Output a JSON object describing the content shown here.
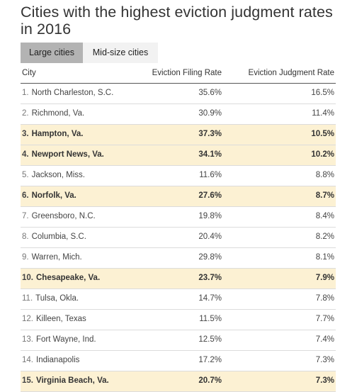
{
  "title": "Cities with the highest eviction judgment rates in 2016",
  "tabs": [
    {
      "label": "Large cities",
      "active": true
    },
    {
      "label": "Mid-size cities",
      "active": false
    }
  ],
  "columns": [
    "City",
    "Eviction Filing Rate",
    "Eviction Judgment Rate"
  ],
  "highlight_color": "#fcf1d3",
  "rows": [
    {
      "num": "1.",
      "city": "North Charleston, S.C.",
      "filing": "35.6%",
      "judgment": "16.5%",
      "highlight": false
    },
    {
      "num": "2.",
      "city": "Richmond, Va.",
      "filing": "30.9%",
      "judgment": "11.4%",
      "highlight": false
    },
    {
      "num": "3.",
      "city": "Hampton, Va.",
      "filing": "37.3%",
      "judgment": "10.5%",
      "highlight": true
    },
    {
      "num": "4.",
      "city": "Newport News, Va.",
      "filing": "34.1%",
      "judgment": "10.2%",
      "highlight": true
    },
    {
      "num": "5.",
      "city": "Jackson, Miss.",
      "filing": "11.6%",
      "judgment": "8.8%",
      "highlight": false
    },
    {
      "num": "6.",
      "city": "Norfolk, Va.",
      "filing": "27.6%",
      "judgment": "8.7%",
      "highlight": true
    },
    {
      "num": "7.",
      "city": "Greensboro, N.C.",
      "filing": "19.8%",
      "judgment": "8.4%",
      "highlight": false
    },
    {
      "num": "8.",
      "city": "Columbia, S.C.",
      "filing": "20.4%",
      "judgment": "8.2%",
      "highlight": false
    },
    {
      "num": "9.",
      "city": "Warren, Mich.",
      "filing": "29.8%",
      "judgment": "8.1%",
      "highlight": false
    },
    {
      "num": "10.",
      "city": "Chesapeake, Va.",
      "filing": "23.7%",
      "judgment": "7.9%",
      "highlight": true
    },
    {
      "num": "11.",
      "city": "Tulsa, Okla.",
      "filing": "14.7%",
      "judgment": "7.8%",
      "highlight": false
    },
    {
      "num": "12.",
      "city": "Killeen, Texas",
      "filing": "11.5%",
      "judgment": "7.7%",
      "highlight": false
    },
    {
      "num": "13.",
      "city": "Fort Wayne, Ind.",
      "filing": "12.5%",
      "judgment": "7.4%",
      "highlight": false
    },
    {
      "num": "14.",
      "city": "Indianapolis",
      "filing": "17.2%",
      "judgment": "7.3%",
      "highlight": false
    },
    {
      "num": "15.",
      "city": "Virginia Beach, Va.",
      "filing": "20.7%",
      "judgment": "7.3%",
      "highlight": true
    }
  ]
}
